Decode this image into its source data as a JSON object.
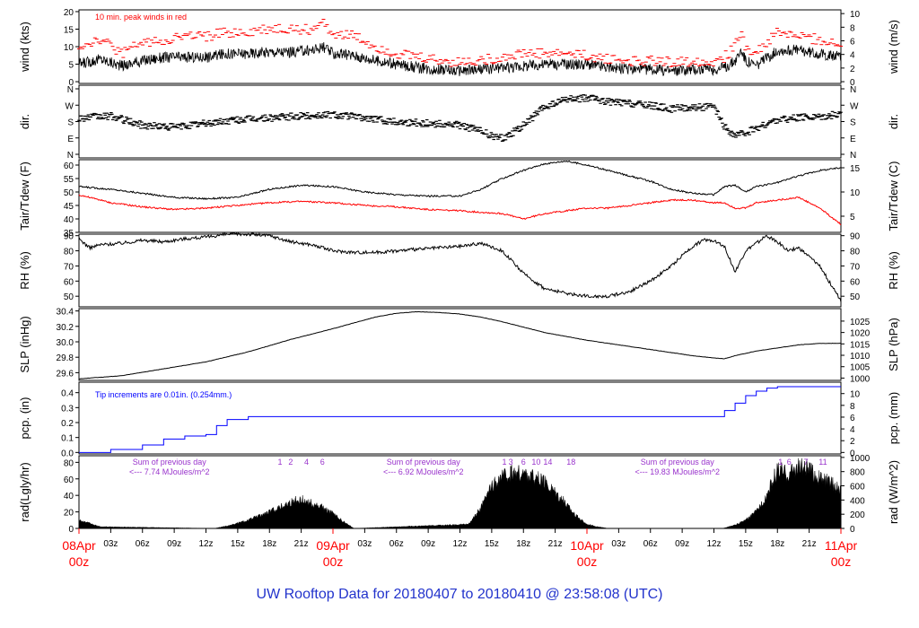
{
  "footer_title": "UW Rooftop Data for 20180407  to  20180410 @ 23:58:08  (UTC)",
  "colors": {
    "black": "#000000",
    "red": "#ff0000",
    "blue": "#0000ff",
    "purple": "#9933cc",
    "footer": "#2233cc"
  },
  "x_axis": {
    "range_hours": [
      0,
      72
    ],
    "date_labels": [
      {
        "h": 0,
        "top": "08Apr",
        "bottom": "00z"
      },
      {
        "h": 24,
        "top": "09Apr",
        "bottom": "00z"
      },
      {
        "h": 48,
        "top": "10Apr",
        "bottom": "00z"
      },
      {
        "h": 72,
        "top": "11Apr",
        "bottom": "00z"
      }
    ],
    "tick_labels": [
      {
        "h": 3,
        "label": "03z"
      },
      {
        "h": 6,
        "label": "06z"
      },
      {
        "h": 9,
        "label": "09z"
      },
      {
        "h": 12,
        "label": "12z"
      },
      {
        "h": 15,
        "label": "15z"
      },
      {
        "h": 18,
        "label": "18z"
      },
      {
        "h": 21,
        "label": "21z"
      },
      {
        "h": 27,
        "label": "03z"
      },
      {
        "h": 30,
        "label": "06z"
      },
      {
        "h": 33,
        "label": "09z"
      },
      {
        "h": 36,
        "label": "12z"
      },
      {
        "h": 39,
        "label": "15z"
      },
      {
        "h": 42,
        "label": "18z"
      },
      {
        "h": 45,
        "label": "21z"
      },
      {
        "h": 51,
        "label": "03z"
      },
      {
        "h": 54,
        "label": "06z"
      },
      {
        "h": 57,
        "label": "09z"
      },
      {
        "h": 60,
        "label": "12z"
      },
      {
        "h": 63,
        "label": "15z"
      },
      {
        "h": 66,
        "label": "18z"
      },
      {
        "h": 69,
        "label": "21z"
      }
    ]
  },
  "chart_data": [
    {
      "type": "line",
      "panel": "wind",
      "ylabel": "wind (kts)",
      "ylabel_right": "wind (m/s)",
      "ylim": [
        0,
        20
      ],
      "yticks": [
        0,
        5,
        10,
        15,
        20
      ],
      "yticks_right": [
        0,
        2,
        4,
        6,
        8,
        10
      ],
      "annotation": "10 min. peak winds in red",
      "x": [
        0,
        2,
        4,
        6,
        8,
        10,
        12,
        14,
        16,
        18,
        20,
        22,
        23,
        24,
        26,
        28,
        30,
        32,
        34,
        36,
        38,
        40,
        42,
        44,
        46,
        48,
        50,
        52,
        54,
        56,
        58,
        59,
        60,
        61,
        62,
        62.6,
        63,
        64,
        66,
        68,
        70,
        72
      ],
      "series": [
        {
          "values": [
            5,
            6.5,
            4.5,
            6,
            7,
            7,
            7,
            8,
            8,
            8.5,
            8.5,
            9,
            10,
            8,
            7.5,
            6,
            5,
            4,
            3.5,
            3,
            3.5,
            4,
            4.5,
            5,
            5,
            5,
            4,
            3.5,
            3.5,
            3,
            3.5,
            3.5,
            3.5,
            4,
            6,
            9,
            6,
            4.5,
            9,
            9,
            8,
            7
          ]
        },
        {
          "values": [
            10,
            12,
            8,
            11,
            12,
            13,
            13,
            14,
            14,
            15,
            15,
            15,
            17,
            14,
            13,
            10,
            8,
            7,
            6,
            5.5,
            6,
            7,
            8,
            8,
            8,
            7.5,
            6.5,
            6,
            6,
            5.5,
            6,
            6,
            6,
            7,
            10,
            15,
            10,
            8,
            14,
            13,
            12,
            10
          ]
        }
      ]
    },
    {
      "type": "scatter",
      "panel": "dir",
      "ylabel": "dir.",
      "ylabel_right": "dir.",
      "yticks": [
        "N",
        "E",
        "S",
        "W",
        "N"
      ],
      "x": [
        0,
        3,
        6,
        9,
        12,
        15,
        18,
        21,
        24,
        27,
        30,
        33,
        36,
        38,
        39,
        40,
        41,
        42,
        44,
        46,
        48,
        50,
        52,
        54,
        56,
        58,
        60,
        61,
        62,
        63,
        64,
        66,
        68,
        70,
        72
      ],
      "values": [
        200,
        210,
        160,
        150,
        170,
        190,
        200,
        210,
        220,
        200,
        180,
        170,
        160,
        130,
        100,
        90,
        120,
        160,
        260,
        300,
        310,
        290,
        280,
        270,
        250,
        260,
        260,
        150,
        100,
        120,
        140,
        190,
        200,
        210,
        220
      ]
    },
    {
      "type": "line",
      "panel": "temp",
      "ylabel": "Tair/Tdew (F)",
      "ylabel_right": "Tair/Tdew (C)",
      "ylim": [
        35,
        60
      ],
      "yticks": [
        35,
        40,
        45,
        50,
        55,
        60
      ],
      "yticks_right": [
        5,
        10,
        15
      ],
      "x": [
        0,
        3,
        6,
        9,
        12,
        15,
        18,
        21,
        24,
        27,
        30,
        33,
        36,
        38,
        40,
        42,
        44,
        46,
        48,
        50,
        52,
        54,
        56,
        58,
        60,
        61,
        62,
        63,
        64,
        66,
        68,
        70,
        72
      ],
      "series": [
        {
          "values": [
            52,
            51,
            49.5,
            48,
            47.5,
            48,
            51,
            52.5,
            52,
            50,
            49,
            48.5,
            48.5,
            51,
            55,
            58,
            60.5,
            61.5,
            60,
            58,
            56,
            54,
            51,
            49.5,
            49,
            52,
            52.5,
            50,
            52,
            53.5,
            56,
            58,
            59
          ]
        },
        {
          "values": [
            49,
            46,
            44.5,
            43.5,
            44,
            45,
            46,
            46.5,
            46,
            45,
            44.5,
            43.5,
            43,
            42.5,
            42,
            40,
            42,
            43,
            44,
            44,
            45,
            46,
            47,
            47,
            46,
            46,
            44,
            44,
            46,
            47,
            48,
            44,
            38
          ]
        }
      ]
    },
    {
      "type": "line",
      "panel": "rh",
      "ylabel": "RH (%)",
      "ylabel_right": "RH (%)",
      "ylim": [
        45,
        90
      ],
      "yticks": [
        50,
        60,
        70,
        80,
        90
      ],
      "yticks_right": [
        50,
        60,
        70,
        80,
        90
      ],
      "x": [
        0,
        1,
        2,
        4,
        6,
        8,
        10,
        12,
        14,
        16,
        18,
        20,
        22,
        24,
        26,
        28,
        30,
        32,
        34,
        36,
        38,
        40,
        42,
        44,
        46,
        48,
        50,
        52,
        54,
        56,
        57,
        58,
        59,
        60,
        61,
        62,
        63,
        64,
        65,
        66,
        67,
        68,
        70,
        72
      ],
      "values": [
        88,
        82,
        84,
        85,
        87,
        86,
        88,
        89,
        91,
        91,
        90,
        86,
        84,
        80,
        79,
        79,
        80,
        81,
        82,
        83,
        85,
        80,
        65,
        55,
        52,
        50,
        50,
        53,
        60,
        70,
        77,
        83,
        87,
        87,
        83,
        66,
        80,
        85,
        90,
        86,
        80,
        82,
        70,
        47
      ]
    },
    {
      "type": "line",
      "panel": "slp",
      "ylabel": "SLP (inHg)",
      "ylabel_right": "SLP (hPa)",
      "ylim": [
        29.5,
        30.4
      ],
      "yticks": [
        29.6,
        29.8,
        30.0,
        30.2,
        30.4
      ],
      "yticks_right": [
        1000,
        1005,
        1010,
        1015,
        1020,
        1025
      ],
      "x": [
        0,
        4,
        8,
        12,
        16,
        20,
        24,
        28,
        30,
        32,
        34,
        36,
        38,
        40,
        44,
        48,
        52,
        56,
        58,
        60,
        61,
        62,
        64,
        66,
        68,
        70,
        72
      ],
      "values": [
        29.52,
        29.56,
        29.65,
        29.74,
        29.87,
        30.03,
        30.17,
        30.32,
        30.37,
        30.39,
        30.38,
        30.36,
        30.32,
        30.26,
        30.12,
        30.02,
        29.94,
        29.86,
        29.82,
        29.79,
        29.78,
        29.82,
        29.88,
        29.92,
        29.96,
        29.98,
        29.98
      ]
    },
    {
      "type": "line",
      "panel": "pcp",
      "ylabel": "pcp. (in)",
      "ylabel_right": "pcp. (mm)",
      "ylim": [
        0,
        0.45
      ],
      "yticks": [
        0.0,
        0.1,
        0.2,
        0.3,
        0.4
      ],
      "yticks_right": [
        0,
        2,
        4,
        6,
        8,
        10
      ],
      "annotation": "Tip increments are 0.01in. (0.254mm.)",
      "x": [
        0,
        3,
        6,
        8,
        10,
        12,
        13,
        14,
        16,
        24,
        36,
        48,
        56,
        60,
        61,
        62,
        63,
        64,
        65,
        66,
        67,
        72
      ],
      "values": [
        0.0,
        0.02,
        0.05,
        0.09,
        0.11,
        0.12,
        0.18,
        0.22,
        0.24,
        0.24,
        0.24,
        0.24,
        0.24,
        0.24,
        0.28,
        0.33,
        0.38,
        0.41,
        0.43,
        0.44,
        0.44,
        0.44
      ]
    },
    {
      "type": "area",
      "panel": "rad",
      "ylabel": "rad(Lgly/hr)",
      "ylabel_right": "rad (W/m^2)",
      "ylim": [
        0,
        85
      ],
      "yticks": [
        0,
        20,
        40,
        60,
        80
      ],
      "yticks_right": [
        0,
        200,
        400,
        600,
        800,
        1000
      ],
      "x": [
        0,
        1,
        2,
        12.8,
        14,
        16,
        18,
        20,
        21,
        22,
        23,
        24,
        25,
        26,
        36.8,
        38,
        39,
        40,
        41,
        42,
        43,
        44,
        45,
        46,
        47,
        48,
        49,
        50,
        60.8,
        62,
        63,
        64,
        65,
        66,
        67,
        68,
        69,
        70,
        71,
        72
      ],
      "values": [
        10,
        6,
        2,
        0,
        3,
        10,
        20,
        32,
        35,
        30,
        25,
        18,
        8,
        0,
        5,
        25,
        50,
        62,
        66,
        65,
        62,
        55,
        45,
        30,
        15,
        5,
        2,
        0,
        0,
        4,
        10,
        20,
        40,
        70,
        65,
        75,
        70,
        60,
        55,
        45
      ],
      "annotations": [
        {
          "text": "Sum of previous day",
          "sub": "<--- 7.74 MJoules/m^2",
          "h": 6
        },
        {
          "text": "Sum of previous day",
          "sub": "<--- 6.92 MJoules/m^2",
          "h": 30
        },
        {
          "text": "Sum of previous day",
          "sub": "<--- 19.83 MJoules/m^2",
          "h": 54
        }
      ],
      "markers": [
        {
          "h": 19,
          "label": "1"
        },
        {
          "h": 20,
          "label": "2"
        },
        {
          "h": 21.5,
          "label": "4"
        },
        {
          "h": 23,
          "label": "6"
        },
        {
          "h": 40.2,
          "label": "1"
        },
        {
          "h": 40.8,
          "label": "3"
        },
        {
          "h": 42,
          "label": "6"
        },
        {
          "h": 43.2,
          "label": "10"
        },
        {
          "h": 44.3,
          "label": "14"
        },
        {
          "h": 46.5,
          "label": "18"
        },
        {
          "h": 66.3,
          "label": "1"
        },
        {
          "h": 67.1,
          "label": "6"
        },
        {
          "h": 68.7,
          "label": "7"
        },
        {
          "h": 70.3,
          "label": "11"
        }
      ]
    }
  ]
}
